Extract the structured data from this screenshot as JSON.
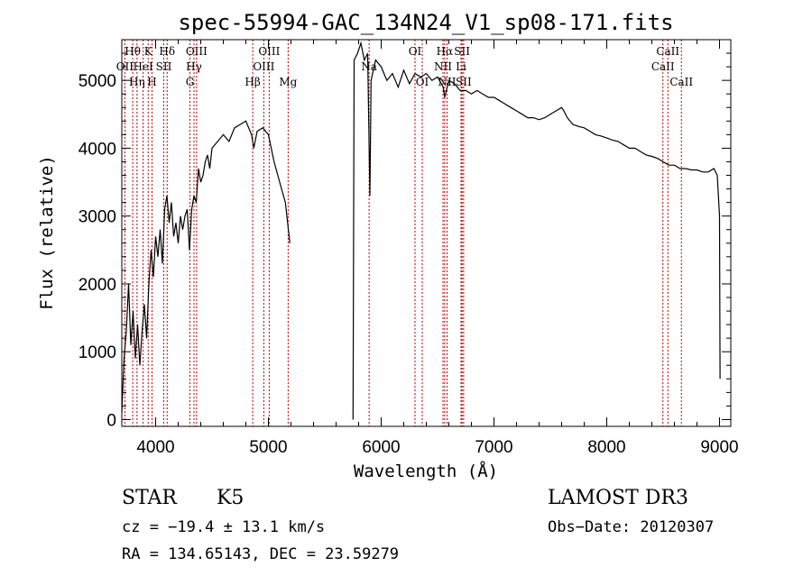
{
  "chart_data": {
    "type": "line",
    "title": "spec-55994-GAC_134N24_V1_sp08-171.fits",
    "xlabel": "Wavelength (Å)",
    "ylabel": "Flux (relative)",
    "xlim": [
      3700,
      9100
    ],
    "ylim": [
      -100,
      5600
    ],
    "x_ticks": [
      4000,
      5000,
      6000,
      7000,
      8000,
      9000
    ],
    "y_ticks": [
      0,
      1000,
      2000,
      3000,
      4000,
      5000
    ],
    "grid": false,
    "series": [
      {
        "color": "#000000",
        "segments": [
          [
            [
              3700,
              100
            ],
            [
              3720,
              900
            ],
            [
              3740,
              1300
            ],
            [
              3760,
              2000
            ],
            [
              3780,
              1100
            ],
            [
              3800,
              1600
            ],
            [
              3820,
              900
            ],
            [
              3840,
              1400
            ],
            [
              3860,
              800
            ],
            [
              3880,
              1300
            ],
            [
              3900,
              1700
            ],
            [
              3920,
              1200
            ],
            [
              3940,
              2000
            ],
            [
              3960,
              2500
            ],
            [
              3980,
              2100
            ],
            [
              4000,
              2700
            ],
            [
              4020,
              2400
            ],
            [
              4040,
              2800
            ],
            [
              4060,
              2300
            ],
            [
              4080,
              3100
            ],
            [
              4100,
              3300
            ],
            [
              4120,
              2900
            ],
            [
              4140,
              3200
            ],
            [
              4160,
              2700
            ],
            [
              4180,
              2900
            ],
            [
              4200,
              2600
            ],
            [
              4220,
              3000
            ],
            [
              4240,
              2800
            ],
            [
              4260,
              3000
            ],
            [
              4280,
              3100
            ],
            [
              4300,
              2500
            ],
            [
              4320,
              3100
            ],
            [
              4340,
              3300
            ],
            [
              4360,
              3200
            ],
            [
              4380,
              3700
            ],
            [
              4400,
              3500
            ],
            [
              4420,
              3600
            ],
            [
              4440,
              3800
            ],
            [
              4460,
              3900
            ],
            [
              4480,
              3700
            ],
            [
              4500,
              4000
            ],
            [
              4550,
              4100
            ],
            [
              4600,
              4200
            ],
            [
              4650,
              4100
            ],
            [
              4700,
              4300
            ],
            [
              4750,
              4350
            ],
            [
              4800,
              4400
            ],
            [
              4850,
              4200
            ],
            [
              4870,
              4000
            ],
            [
              4900,
              4250
            ],
            [
              4950,
              4300
            ],
            [
              5000,
              4200
            ],
            [
              5050,
              3800
            ],
            [
              5100,
              3500
            ],
            [
              5150,
              3200
            ],
            [
              5170,
              2900
            ],
            [
              5190,
              2600
            ]
          ],
          [
            [
              5750,
              0
            ],
            [
              5760,
              5300
            ],
            [
              5790,
              5400
            ],
            [
              5820,
              5550
            ],
            [
              5850,
              5300
            ],
            [
              5880,
              5400
            ],
            [
              5900,
              3300
            ],
            [
              5910,
              5000
            ],
            [
              5950,
              5300
            ],
            [
              6000,
              5200
            ],
            [
              6050,
              5000
            ],
            [
              6100,
              5100
            ],
            [
              6150,
              4900
            ],
            [
              6200,
              5150
            ],
            [
              6250,
              4950
            ],
            [
              6300,
              5100
            ],
            [
              6350,
              5050
            ],
            [
              6400,
              5100
            ],
            [
              6450,
              5000
            ],
            [
              6500,
              5050
            ],
            [
              6550,
              4900
            ],
            [
              6563,
              4750
            ],
            [
              6600,
              5000
            ],
            [
              6650,
              4950
            ],
            [
              6700,
              4850
            ],
            [
              6750,
              4850
            ],
            [
              6800,
              4800
            ],
            [
              6850,
              4850
            ],
            [
              6900,
              4800
            ],
            [
              6950,
              4750
            ],
            [
              7000,
              4750
            ],
            [
              7050,
              4700
            ],
            [
              7100,
              4650
            ],
            [
              7150,
              4600
            ],
            [
              7200,
              4550
            ],
            [
              7250,
              4500
            ],
            [
              7300,
              4450
            ],
            [
              7350,
              4450
            ],
            [
              7400,
              4420
            ],
            [
              7450,
              4450
            ],
            [
              7500,
              4500
            ],
            [
              7550,
              4550
            ],
            [
              7600,
              4600
            ],
            [
              7620,
              4550
            ],
            [
              7650,
              4450
            ],
            [
              7700,
              4350
            ],
            [
              7750,
              4320
            ],
            [
              7800,
              4300
            ],
            [
              7850,
              4250
            ],
            [
              7900,
              4200
            ],
            [
              7950,
              4180
            ],
            [
              8000,
              4150
            ],
            [
              8050,
              4120
            ],
            [
              8100,
              4100
            ],
            [
              8150,
              4050
            ],
            [
              8200,
              4000
            ],
            [
              8250,
              4000
            ],
            [
              8300,
              3950
            ],
            [
              8350,
              3900
            ],
            [
              8400,
              3880
            ],
            [
              8450,
              3850
            ],
            [
              8500,
              3800
            ],
            [
              8550,
              3750
            ],
            [
              8600,
              3750
            ],
            [
              8650,
              3700
            ],
            [
              8700,
              3700
            ],
            [
              8750,
              3680
            ],
            [
              8800,
              3680
            ],
            [
              8850,
              3650
            ],
            [
              8900,
              3650
            ],
            [
              8950,
              3700
            ],
            [
              8980,
              3600
            ],
            [
              9000,
              3000
            ],
            [
              9005,
              600
            ]
          ]
        ]
      }
    ],
    "line_markers": [
      {
        "label": "Hθ",
        "x": 3797,
        "row": 0
      },
      {
        "label": "K",
        "x": 3934,
        "row": 0
      },
      {
        "label": "Hδ",
        "x": 4102,
        "row": 0
      },
      {
        "label": "OIII",
        "x": 4363,
        "row": 0
      },
      {
        "label": "OIII",
        "x": 5007,
        "row": 0
      },
      {
        "label": "OI",
        "x": 6300,
        "row": 0
      },
      {
        "label": "Hα",
        "x": 6563,
        "row": 0
      },
      {
        "label": "SII",
        "x": 6717,
        "row": 0
      },
      {
        "label": "CaII",
        "x": 8542,
        "row": 0
      },
      {
        "label": "OII",
        "x": 3727,
        "row": 1
      },
      {
        "label": "HeI",
        "x": 3889,
        "row": 1
      },
      {
        "label": "SII",
        "x": 4072,
        "row": 1
      },
      {
        "label": "Hγ",
        "x": 4340,
        "row": 1
      },
      {
        "label": "OIII",
        "x": 4959,
        "row": 1
      },
      {
        "label": "Na",
        "x": 5893,
        "row": 1
      },
      {
        "label": "NII",
        "x": 6548,
        "row": 1
      },
      {
        "label": "Li",
        "x": 6708,
        "row": 1
      },
      {
        "label": "CaII",
        "x": 8498,
        "row": 1
      },
      {
        "label": "Hη",
        "x": 3835,
        "row": 2
      },
      {
        "label": "H",
        "x": 3968,
        "row": 2
      },
      {
        "label": "G",
        "x": 4304,
        "row": 2
      },
      {
        "label": "Hβ",
        "x": 4861,
        "row": 2
      },
      {
        "label": "Mg",
        "x": 5175,
        "row": 2
      },
      {
        "label": "OI",
        "x": 6364,
        "row": 2
      },
      {
        "label": "NII",
        "x": 6584,
        "row": 2
      },
      {
        "label": "SII",
        "x": 6731,
        "row": 2
      },
      {
        "label": "CaII",
        "x": 8662,
        "row": 2
      }
    ]
  },
  "info": {
    "object_class": "STAR",
    "subclass": "K5",
    "survey": "LAMOST DR3",
    "redshift": "cz = −19.4 ± 13.1 km/s",
    "obs_date": "Obs−Date: 20120307",
    "coords": "RA = 134.65143, DEC =  23.59279"
  }
}
